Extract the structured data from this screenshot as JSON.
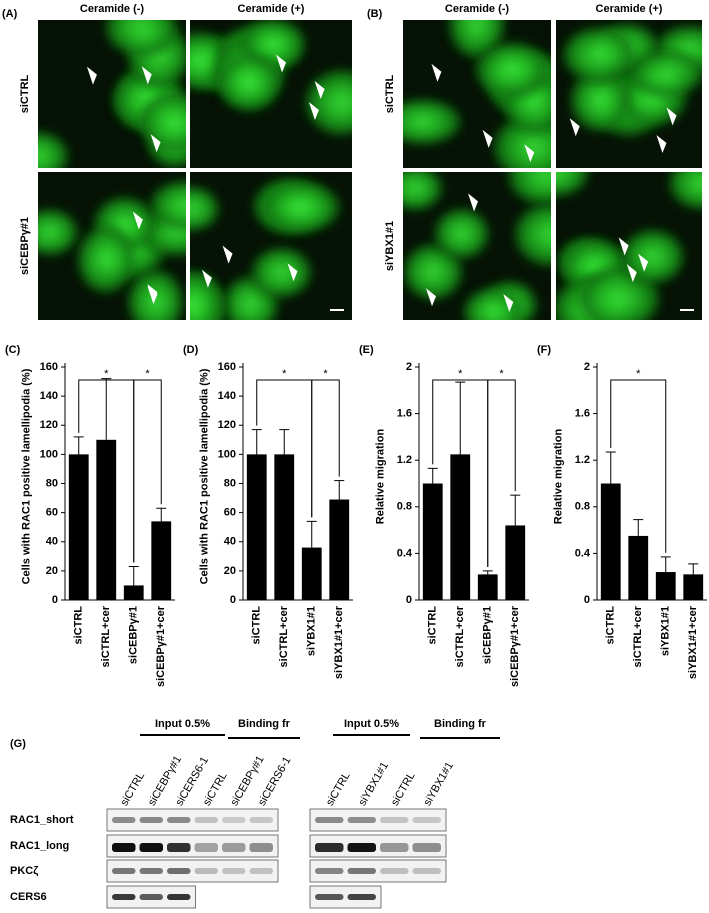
{
  "microscopy": [
    {
      "label": "(A)",
      "columns": [
        "Ceramide (-)",
        "Ceramide (+)"
      ],
      "rows": [
        "siCTRL",
        "siCEBPγ#1"
      ]
    },
    {
      "label": "(B)",
      "columns": [
        "Ceramide (-)",
        "Ceramide (+)"
      ],
      "rows": [
        "siCTRL",
        "siYBX1#1"
      ]
    }
  ],
  "chart_data": [
    {
      "type": "bar",
      "panel": "(C)",
      "ylabel": "Cells with RAC1 positive lamellipodia (%)",
      "categories": [
        "siCTRL",
        "siCTRL+cer",
        "siCEBPγ#1",
        "siCEBPγ#1+cer"
      ],
      "values": [
        100,
        110,
        10,
        54
      ],
      "errors": [
        12,
        42,
        13,
        9
      ],
      "color": "#000000",
      "ylim": [
        0,
        160
      ],
      "yticks": [
        0,
        20,
        40,
        60,
        80,
        100,
        120,
        140,
        160
      ],
      "significance": [
        {
          "from": 0,
          "to": 2,
          "label": "*"
        },
        {
          "from": 2,
          "to": 3,
          "label": "*"
        }
      ]
    },
    {
      "type": "bar",
      "panel": "(D)",
      "ylabel": "Cells with RAC1 positive lamellipodia (%)",
      "categories": [
        "siCTRL",
        "siCTRL+cer",
        "siYBX1#1",
        "siYBX1#1+cer"
      ],
      "values": [
        100,
        100,
        36,
        69
      ],
      "errors": [
        17,
        17,
        18,
        13
      ],
      "color": "#000000",
      "ylim": [
        0,
        160
      ],
      "yticks": [
        0,
        20,
        40,
        60,
        80,
        100,
        120,
        140,
        160
      ],
      "significance": [
        {
          "from": 0,
          "to": 2,
          "label": "*"
        },
        {
          "from": 2,
          "to": 3,
          "label": "*"
        }
      ]
    },
    {
      "type": "bar",
      "panel": "(E)",
      "ylabel": "Relative migration",
      "categories": [
        "siCTRL",
        "siCTRL+cer",
        "siCEBPγ#1",
        "siCEBPγ#1+cer"
      ],
      "values": [
        1.0,
        1.25,
        0.22,
        0.64
      ],
      "errors": [
        0.13,
        0.62,
        0.03,
        0.26
      ],
      "color": "#000000",
      "ylim": [
        0,
        2
      ],
      "yticks": [
        0,
        0.4,
        0.8,
        1.2,
        1.6,
        2
      ],
      "significance": [
        {
          "from": 0,
          "to": 2,
          "label": "*"
        },
        {
          "from": 2,
          "to": 3,
          "label": "*"
        }
      ]
    },
    {
      "type": "bar",
      "panel": "(F)",
      "ylabel": "Relative migration",
      "categories": [
        "siCTRL",
        "siCTRL+cer",
        "siYBX1#1",
        "siYBX1#1+cer"
      ],
      "values": [
        1.0,
        0.55,
        0.24,
        0.22
      ],
      "errors": [
        0.27,
        0.14,
        0.13,
        0.09
      ],
      "color": "#000000",
      "ylim": [
        0,
        2
      ],
      "yticks": [
        0,
        0.4,
        0.8,
        1.2,
        1.6,
        2
      ],
      "significance": [
        {
          "from": 0,
          "to": 2,
          "label": "*"
        }
      ]
    }
  ],
  "blot": {
    "label": "(G)",
    "rows": [
      "RAC1_short",
      "RAC1_long",
      "PKCζ",
      "CERS6"
    ],
    "groups": [
      {
        "headers": [
          "Input 0.5%",
          "Binding fr"
        ],
        "lanes": [
          "siCTRL",
          "siCEBPγ#1",
          "siCERS6-1",
          "siCTRL",
          "siCEBPγ#1",
          "siCERS6-1"
        ]
      },
      {
        "headers": [
          "Input 0.5%",
          "Binding fr"
        ],
        "lanes": [
          "siCTRL",
          "siYBX1#1",
          "siCTRL",
          "siYBX1#1"
        ]
      }
    ]
  }
}
